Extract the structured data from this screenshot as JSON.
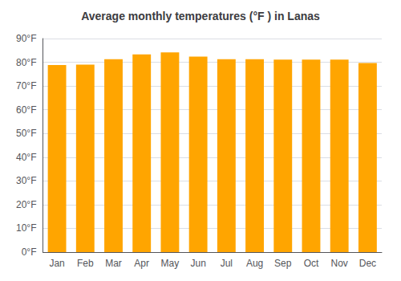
{
  "chart_data": {
    "type": "bar",
    "title": "Average monthly temperatures (°F ) in Lanas",
    "categories": [
      "Jan",
      "Feb",
      "Mar",
      "Apr",
      "May",
      "Jun",
      "Jul",
      "Aug",
      "Sep",
      "Oct",
      "Nov",
      "Dec"
    ],
    "values": [
      78.8,
      79.0,
      81.3,
      83.3,
      84.2,
      82.4,
      81.3,
      81.3,
      81.1,
      81.1,
      81.1,
      79.7
    ],
    "color": "#FFA500",
    "ylim": [
      0,
      90
    ],
    "yticks": [
      {
        "value": 0,
        "label": "0°F"
      },
      {
        "value": 10,
        "label": "10°F"
      },
      {
        "value": 20,
        "label": "20°F"
      },
      {
        "value": 30,
        "label": "30°F"
      },
      {
        "value": 40,
        "label": "40°F"
      },
      {
        "value": 50,
        "label": "50°F"
      },
      {
        "value": 60,
        "label": "60°F"
      },
      {
        "value": 70,
        "label": "70°F"
      },
      {
        "value": 80,
        "label": "80°F"
      },
      {
        "value": 90,
        "label": "90°F"
      }
    ],
    "grid": true
  }
}
